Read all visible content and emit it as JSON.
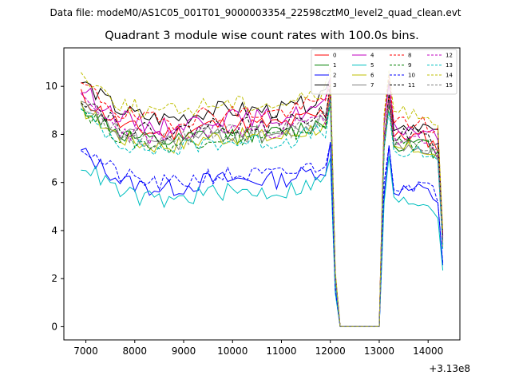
{
  "suptitle": "Data file: modeM0/AS1C05_001T01_9000003354_22598cztM0_level2_quad_clean.evt",
  "chart_data": {
    "type": "line",
    "title": "Quadrant 3 module wise count rates with 100.0s bins.",
    "xlabel": "",
    "ylabel": "",
    "x_offset_label": "+3.13e8",
    "xlim": [
      6550,
      14650
    ],
    "ylim": [
      -0.55,
      11.6
    ],
    "xticks": [
      7000,
      8000,
      9000,
      10000,
      11000,
      12000,
      13000,
      14000
    ],
    "yticks": [
      0,
      2,
      4,
      6,
      8,
      10
    ],
    "x_start": 6900,
    "x_step": 100,
    "gap": {
      "drop_x": 12100,
      "rise_x": 13100
    },
    "legend": {
      "position": "top-right",
      "columns": 4
    },
    "series": [
      {
        "name": "0",
        "color": "#ff0000",
        "dash": "solid",
        "pre": 8.4,
        "post": 7.9,
        "seed": 11
      },
      {
        "name": "1",
        "color": "#008000",
        "dash": "solid",
        "pre": 8.0,
        "post": 7.6,
        "seed": 12
      },
      {
        "name": "2",
        "color": "#0000ff",
        "dash": "solid",
        "pre": 6.1,
        "post": 5.7,
        "seed": 13
      },
      {
        "name": "3",
        "color": "#000000",
        "dash": "solid",
        "pre": 9.0,
        "post": 8.4,
        "seed": 14
      },
      {
        "name": "4",
        "color": "#c000c0",
        "dash": "solid",
        "pre": 8.7,
        "post": 8.2,
        "seed": 15
      },
      {
        "name": "5",
        "color": "#00bfbf",
        "dash": "solid",
        "pre": 5.6,
        "post": 5.2,
        "seed": 16
      },
      {
        "name": "6",
        "color": "#bfbf00",
        "dash": "solid",
        "pre": 7.9,
        "post": 7.4,
        "seed": 17
      },
      {
        "name": "7",
        "color": "#808080",
        "dash": "solid",
        "pre": 8.0,
        "post": 7.5,
        "seed": 18
      },
      {
        "name": "8",
        "color": "#ff0000",
        "dash": "dashed",
        "pre": 8.9,
        "post": 8.5,
        "seed": 19
      },
      {
        "name": "9",
        "color": "#008000",
        "dash": "dashed",
        "pre": 7.9,
        "post": 7.6,
        "seed": 20
      },
      {
        "name": "10",
        "color": "#0000ff",
        "dash": "dashed",
        "pre": 6.3,
        "post": 5.9,
        "seed": 21
      },
      {
        "name": "11",
        "color": "#000000",
        "dash": "dashed",
        "pre": 8.4,
        "post": 8.0,
        "seed": 22
      },
      {
        "name": "12",
        "color": "#c000c0",
        "dash": "dashed",
        "pre": 8.2,
        "post": 7.7,
        "seed": 23
      },
      {
        "name": "13",
        "color": "#00bfbf",
        "dash": "dashed",
        "pre": 7.7,
        "post": 7.2,
        "seed": 24
      },
      {
        "name": "14",
        "color": "#bfbf00",
        "dash": "dashed",
        "pre": 9.3,
        "post": 8.9,
        "seed": 25
      },
      {
        "name": "15",
        "color": "#808080",
        "dash": "dashed",
        "pre": 8.1,
        "post": 7.6,
        "seed": 26
      }
    ]
  }
}
